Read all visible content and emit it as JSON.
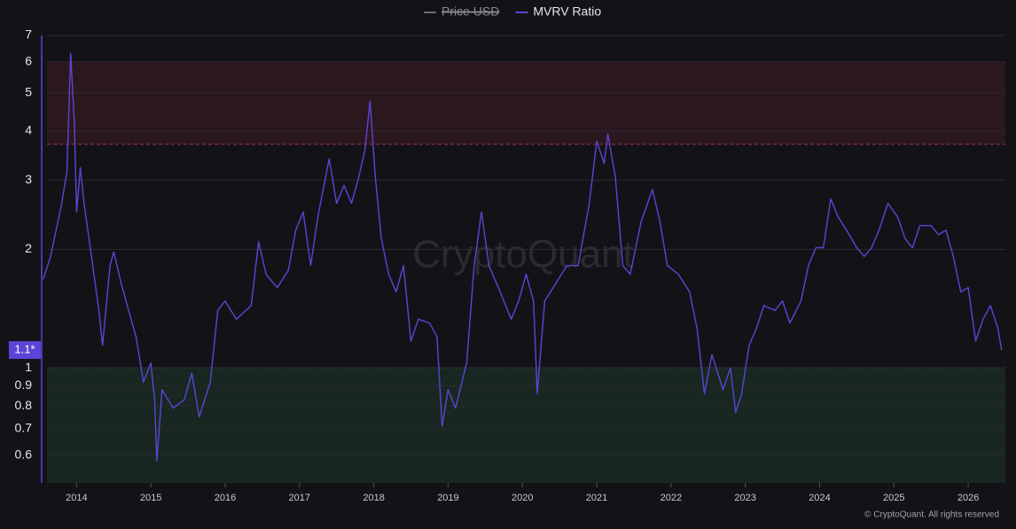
{
  "chart_data": {
    "type": "line",
    "legend": [
      {
        "name": "Price USD",
        "color": "#6b6b73",
        "hidden": true
      },
      {
        "name": "MVRV Ratio",
        "color": "#5b45d6"
      }
    ],
    "watermark": "CryptoQuant",
    "footer": "© CryptoQuant. All rights reserved",
    "last_value_label": "1.1*",
    "log_y": true,
    "grid": true,
    "xlim": [
      2013.53,
      2026.5
    ],
    "xticks": [
      2014,
      2015,
      2016,
      2017,
      2018,
      2019,
      2020,
      2021,
      2022,
      2023,
      2024,
      2025,
      2026
    ],
    "ylim": [
      0.51,
      7
    ],
    "yticks": [
      0.6,
      0.7,
      0.8,
      0.9,
      1,
      2,
      3,
      4,
      5,
      6,
      7
    ],
    "bands": [
      {
        "from": 3.7,
        "to": 6,
        "color": "#e0405a"
      },
      {
        "from": 0.51,
        "to": 1,
        "color": "#3fbf6a"
      }
    ],
    "x": [
      2013.55,
      2013.65,
      2013.75,
      2013.8,
      2013.87,
      2013.92,
      2013.97,
      2014.0,
      2014.05,
      2014.1,
      2014.2,
      2014.3,
      2014.35,
      2014.45,
      2014.5,
      2014.6,
      2014.7,
      2014.8,
      2014.9,
      2015.0,
      2015.05,
      2015.08,
      2015.15,
      2015.3,
      2015.45,
      2015.55,
      2015.65,
      2015.8,
      2015.9,
      2016.0,
      2016.15,
      2016.35,
      2016.45,
      2016.55,
      2016.7,
      2016.85,
      2016.95,
      2017.05,
      2017.15,
      2017.25,
      2017.4,
      2017.5,
      2017.6,
      2017.7,
      2017.8,
      2017.88,
      2017.95,
      2018.02,
      2018.1,
      2018.2,
      2018.3,
      2018.4,
      2018.5,
      2018.6,
      2018.75,
      2018.85,
      2018.92,
      2019.0,
      2019.1,
      2019.25,
      2019.35,
      2019.45,
      2019.55,
      2019.7,
      2019.85,
      2019.95,
      2020.05,
      2020.15,
      2020.2,
      2020.3,
      2020.45,
      2020.6,
      2020.75,
      2020.9,
      2021.0,
      2021.1,
      2021.15,
      2021.25,
      2021.35,
      2021.45,
      2021.6,
      2021.75,
      2021.85,
      2021.95,
      2022.1,
      2022.25,
      2022.35,
      2022.45,
      2022.55,
      2022.7,
      2022.8,
      2022.87,
      2022.95,
      2023.05,
      2023.15,
      2023.25,
      2023.4,
      2023.5,
      2023.6,
      2023.75,
      2023.85,
      2023.95,
      2024.05,
      2024.15,
      2024.25,
      2024.4,
      2024.5,
      2024.6,
      2024.7,
      2024.8,
      2024.92,
      2025.05,
      2025.15,
      2025.25,
      2025.35,
      2025.5,
      2025.6,
      2025.7,
      2025.8,
      2025.9,
      2026.0,
      2026.1,
      2026.2,
      2026.3,
      2026.4,
      2026.45
    ],
    "series": [
      {
        "name": "MVRV Ratio",
        "color": "#5b45d6",
        "values": [
          1.68,
          1.92,
          2.36,
          2.62,
          3.15,
          6.3,
          4.19,
          2.49,
          3.23,
          2.62,
          1.92,
          1.4,
          1.14,
          1.82,
          1.97,
          1.64,
          1.4,
          1.2,
          0.92,
          1.03,
          0.83,
          0.58,
          0.88,
          0.79,
          0.83,
          0.97,
          0.75,
          0.92,
          1.4,
          1.48,
          1.33,
          1.44,
          2.09,
          1.73,
          1.6,
          1.77,
          2.24,
          2.49,
          1.82,
          2.44,
          3.4,
          2.62,
          2.91,
          2.62,
          3.07,
          3.58,
          4.77,
          3.07,
          2.14,
          1.73,
          1.56,
          1.82,
          1.17,
          1.33,
          1.3,
          1.2,
          0.71,
          0.88,
          0.79,
          1.03,
          1.82,
          2.49,
          1.82,
          1.56,
          1.33,
          1.48,
          1.73,
          1.48,
          0.86,
          1.48,
          1.64,
          1.82,
          1.82,
          2.62,
          3.77,
          3.31,
          3.93,
          3.07,
          1.82,
          1.73,
          2.36,
          2.84,
          2.36,
          1.82,
          1.73,
          1.56,
          1.26,
          0.86,
          1.08,
          0.88,
          1.0,
          0.77,
          0.86,
          1.14,
          1.26,
          1.44,
          1.4,
          1.48,
          1.3,
          1.48,
          1.82,
          2.02,
          2.02,
          2.69,
          2.42,
          2.18,
          2.02,
          1.92,
          2.02,
          2.24,
          2.62,
          2.42,
          2.13,
          2.02,
          2.3,
          2.3,
          2.18,
          2.24,
          1.92,
          1.56,
          1.6,
          1.17,
          1.33,
          1.44,
          1.26,
          1.11
        ]
      }
    ]
  }
}
